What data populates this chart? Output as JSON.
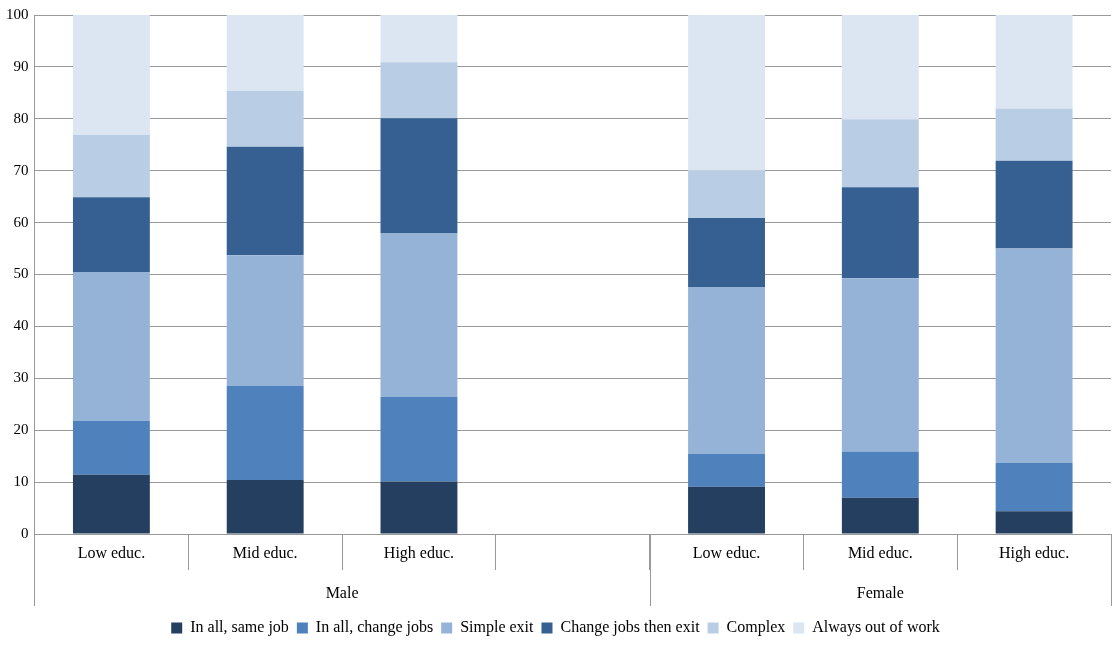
{
  "chart_data": {
    "type": "bar",
    "stacked": true,
    "categories": [
      "Low educ.",
      "Mid educ.",
      "High educ.",
      null,
      "Low educ.",
      "Mid educ.",
      "High educ."
    ],
    "annotations": [
      "Male",
      "Female"
    ],
    "series": [
      {
        "name": "In all, same job",
        "color": "#243f60",
        "values": [
          11.4,
          10.4,
          10.1,
          null,
          9.1,
          7.0,
          4.4
        ]
      },
      {
        "name": "In all, change jobs",
        "color": "#4f81bd",
        "values": [
          10.4,
          18.1,
          16.3,
          null,
          6.3,
          8.9,
          9.3
        ]
      },
      {
        "name": "Simple exit",
        "color": "#95b3d7",
        "values": [
          28.7,
          25.2,
          31.5,
          null,
          32.2,
          33.4,
          41.3
        ]
      },
      {
        "name": "Change jobs then exit",
        "color": "#366092",
        "values": [
          14.4,
          20.9,
          22.2,
          null,
          13.3,
          17.5,
          16.9
        ]
      },
      {
        "name": "Complex",
        "color": "#b9cde5",
        "values": [
          12.0,
          10.8,
          10.8,
          null,
          9.1,
          13.1,
          10.1
        ]
      },
      {
        "name": "Always out of work",
        "color": "#dce6f2",
        "values": [
          23.1,
          14.6,
          9.1,
          null,
          30.0,
          20.1,
          18.0
        ]
      }
    ],
    "ylim": [
      0,
      100
    ],
    "yticks": [
      0,
      10,
      20,
      30,
      40,
      50,
      60,
      70,
      80,
      90,
      100
    ],
    "grid": "y",
    "legend": "bottom"
  }
}
